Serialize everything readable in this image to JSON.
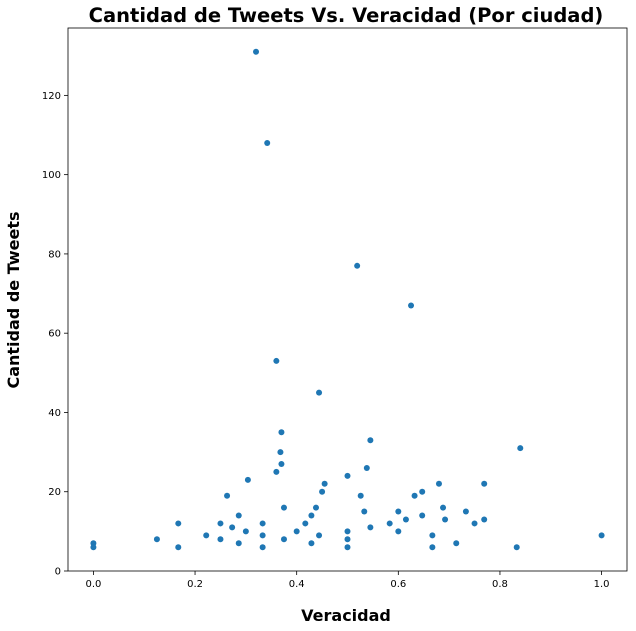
{
  "chart_data": {
    "type": "scatter",
    "title": "Cantidad de Tweets Vs. Veracidad (Por ciudad)",
    "xlabel": "Veracidad",
    "ylabel": "Cantidad de Tweets",
    "xlim": [
      -0.05,
      1.05
    ],
    "ylim": [
      0,
      137
    ],
    "xticks": [
      "0.0",
      "0.2",
      "0.4",
      "0.6",
      "0.8",
      "1.0"
    ],
    "yticks": [
      "0",
      "20",
      "40",
      "60",
      "80",
      "100",
      "120"
    ],
    "grid": false,
    "color": "#1f77b4",
    "points": [
      {
        "x": 0.0,
        "y": 7
      },
      {
        "x": 0.0,
        "y": 6
      },
      {
        "x": 0.125,
        "y": 8
      },
      {
        "x": 0.167,
        "y": 12
      },
      {
        "x": 0.167,
        "y": 6
      },
      {
        "x": 0.222,
        "y": 9
      },
      {
        "x": 0.25,
        "y": 12
      },
      {
        "x": 0.25,
        "y": 8
      },
      {
        "x": 0.263,
        "y": 19
      },
      {
        "x": 0.273,
        "y": 11
      },
      {
        "x": 0.286,
        "y": 14
      },
      {
        "x": 0.286,
        "y": 7
      },
      {
        "x": 0.3,
        "y": 10
      },
      {
        "x": 0.304,
        "y": 23
      },
      {
        "x": 0.32,
        "y": 131
      },
      {
        "x": 0.333,
        "y": 12
      },
      {
        "x": 0.333,
        "y": 9
      },
      {
        "x": 0.333,
        "y": 6
      },
      {
        "x": 0.342,
        "y": 108
      },
      {
        "x": 0.36,
        "y": 53
      },
      {
        "x": 0.36,
        "y": 25
      },
      {
        "x": 0.368,
        "y": 30
      },
      {
        "x": 0.37,
        "y": 35
      },
      {
        "x": 0.37,
        "y": 27
      },
      {
        "x": 0.375,
        "y": 16
      },
      {
        "x": 0.375,
        "y": 8
      },
      {
        "x": 0.4,
        "y": 10
      },
      {
        "x": 0.417,
        "y": 12
      },
      {
        "x": 0.429,
        "y": 14
      },
      {
        "x": 0.429,
        "y": 7
      },
      {
        "x": 0.438,
        "y": 16
      },
      {
        "x": 0.444,
        "y": 45
      },
      {
        "x": 0.444,
        "y": 9
      },
      {
        "x": 0.45,
        "y": 20
      },
      {
        "x": 0.455,
        "y": 22
      },
      {
        "x": 0.5,
        "y": 24
      },
      {
        "x": 0.5,
        "y": 10
      },
      {
        "x": 0.5,
        "y": 8
      },
      {
        "x": 0.5,
        "y": 6
      },
      {
        "x": 0.519,
        "y": 77
      },
      {
        "x": 0.526,
        "y": 19
      },
      {
        "x": 0.533,
        "y": 15
      },
      {
        "x": 0.538,
        "y": 26
      },
      {
        "x": 0.545,
        "y": 33
      },
      {
        "x": 0.545,
        "y": 11
      },
      {
        "x": 0.583,
        "y": 12
      },
      {
        "x": 0.6,
        "y": 15
      },
      {
        "x": 0.6,
        "y": 10
      },
      {
        "x": 0.615,
        "y": 13
      },
      {
        "x": 0.625,
        "y": 67
      },
      {
        "x": 0.632,
        "y": 19
      },
      {
        "x": 0.647,
        "y": 20
      },
      {
        "x": 0.647,
        "y": 14
      },
      {
        "x": 0.667,
        "y": 9
      },
      {
        "x": 0.667,
        "y": 6
      },
      {
        "x": 0.68,
        "y": 22
      },
      {
        "x": 0.688,
        "y": 16
      },
      {
        "x": 0.692,
        "y": 13
      },
      {
        "x": 0.714,
        "y": 7
      },
      {
        "x": 0.733,
        "y": 15
      },
      {
        "x": 0.75,
        "y": 12
      },
      {
        "x": 0.769,
        "y": 22
      },
      {
        "x": 0.769,
        "y": 13
      },
      {
        "x": 0.833,
        "y": 6
      },
      {
        "x": 0.84,
        "y": 31
      },
      {
        "x": 1.0,
        "y": 9
      }
    ]
  }
}
